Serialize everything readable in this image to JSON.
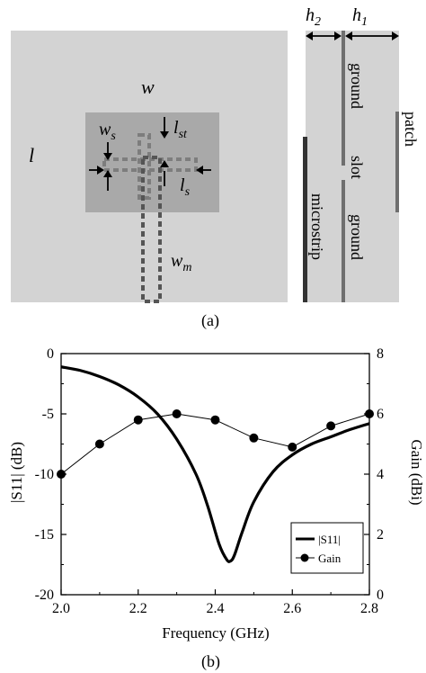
{
  "figure_a": {
    "caption": "(a)",
    "labels": {
      "w": "w",
      "l": "l",
      "ws": "w",
      "ws_sub": "s",
      "lst": "l",
      "lst_sub": "st",
      "ls": "l",
      "ls_sub": "s",
      "wm": "w",
      "wm_sub": "m",
      "h2": "h",
      "h2_sub": "2",
      "h1": "h",
      "h1_sub": "1",
      "ground_top": "ground",
      "slot": "slot",
      "ground_bottom": "ground",
      "microstrip": "microstrip",
      "patch": "patch"
    },
    "colors": {
      "substrate": "#d3d3d3",
      "patch_region": "#a9a9a9",
      "layer_dark": "#333333",
      "layer_mid": "#6f6f6f",
      "slot_feed": "#7d7d7d"
    }
  },
  "figure_b": {
    "caption": "(b)",
    "legend": {
      "s11": "|S11|",
      "gain": "Gain"
    }
  },
  "chart_data": {
    "type": "line",
    "xlabel": "Frequency (GHz)",
    "ylabel_left": "|S11| (dB)",
    "ylabel_right": "Gain (dBi)",
    "xlim": [
      2.0,
      2.8
    ],
    "ylim_left": [
      -20,
      0
    ],
    "ylim_right": [
      0,
      8
    ],
    "x_ticks": [
      "2.0",
      "2.2",
      "2.4",
      "2.6",
      "2.8"
    ],
    "y_ticks_left": [
      "0",
      "-5",
      "-10",
      "-15",
      "-20"
    ],
    "y_ticks_right": [
      "0",
      "2",
      "4",
      "6",
      "8"
    ],
    "grid": false,
    "legend_position": "bottom-right",
    "series": [
      {
        "name": "|S11|",
        "axis": "left",
        "style": "solid-thick",
        "x": [
          2.0,
          2.05,
          2.1,
          2.15,
          2.2,
          2.25,
          2.3,
          2.35,
          2.38,
          2.41,
          2.43,
          2.44,
          2.45,
          2.47,
          2.5,
          2.55,
          2.6,
          2.65,
          2.7,
          2.75,
          2.8
        ],
        "values": [
          -1.1,
          -1.4,
          -1.9,
          -2.6,
          -3.6,
          -5.0,
          -7.1,
          -10.0,
          -12.6,
          -15.8,
          -17.1,
          -17.2,
          -16.7,
          -14.8,
          -12.3,
          -9.8,
          -8.4,
          -7.5,
          -6.9,
          -6.3,
          -5.8
        ]
      },
      {
        "name": "Gain",
        "axis": "right",
        "style": "line-dot",
        "x": [
          2.0,
          2.1,
          2.2,
          2.3,
          2.4,
          2.5,
          2.6,
          2.7,
          2.8
        ],
        "values": [
          4.0,
          5.0,
          5.8,
          6.0,
          5.8,
          5.2,
          4.9,
          5.6,
          6.0
        ]
      }
    ]
  }
}
